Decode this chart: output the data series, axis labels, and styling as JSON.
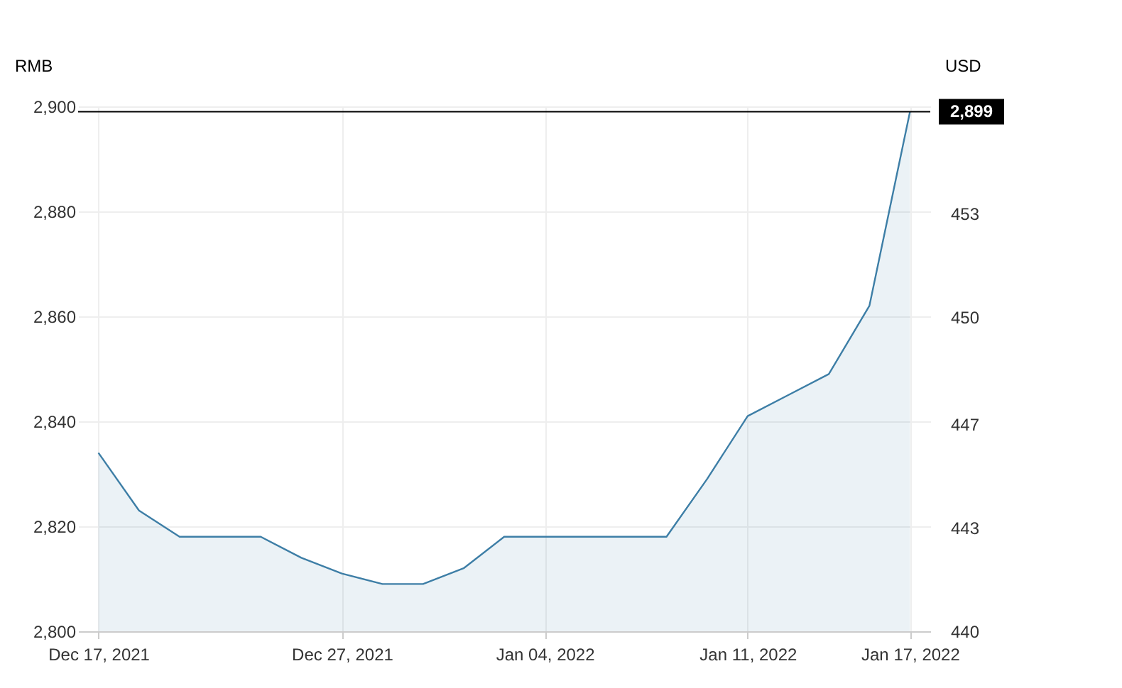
{
  "chart_data": {
    "type": "area",
    "ylabel": "RMB",
    "y2label": "USD",
    "categories": [
      "Dec 17, 2021",
      null,
      null,
      null,
      null,
      null,
      "Dec 27, 2021",
      null,
      null,
      null,
      null,
      "Jan 04, 2022",
      null,
      null,
      null,
      null,
      "Jan 11, 2022",
      null,
      null,
      null,
      "Jan 17, 2022"
    ],
    "series": [
      {
        "color": "#3d7ea6",
        "values": [
          2834,
          2823,
          2818,
          2818,
          2818,
          2814,
          2811,
          2809,
          2809,
          2812,
          2818,
          2818,
          2818,
          2818,
          2818,
          2829,
          2841,
          2845,
          2849,
          2862,
          2899
        ]
      }
    ],
    "ylim": [
      2800,
      2900
    ],
    "yticks": [
      {
        "value": 2800,
        "label": "2,800"
      },
      {
        "value": 2820,
        "label": "2,820"
      },
      {
        "value": 2840,
        "label": "2,840"
      },
      {
        "value": 2860,
        "label": "2,860"
      },
      {
        "value": 2880,
        "label": "2,880"
      },
      {
        "value": 2900,
        "label": "2,900"
      }
    ],
    "y2lim": [
      440.3,
      456.0
    ],
    "y2ticks": [
      {
        "value": 440.3,
        "label": "440"
      },
      {
        "value": 443.4,
        "label": "443"
      },
      {
        "value": 446.5,
        "label": "447"
      },
      {
        "value": 449.7,
        "label": "450"
      },
      {
        "value": 452.8,
        "label": "453"
      }
    ],
    "ref_lines": [
      {
        "axis": "y",
        "value": 2899,
        "label": "2,899",
        "color": "#000000"
      }
    ],
    "grid": true
  }
}
